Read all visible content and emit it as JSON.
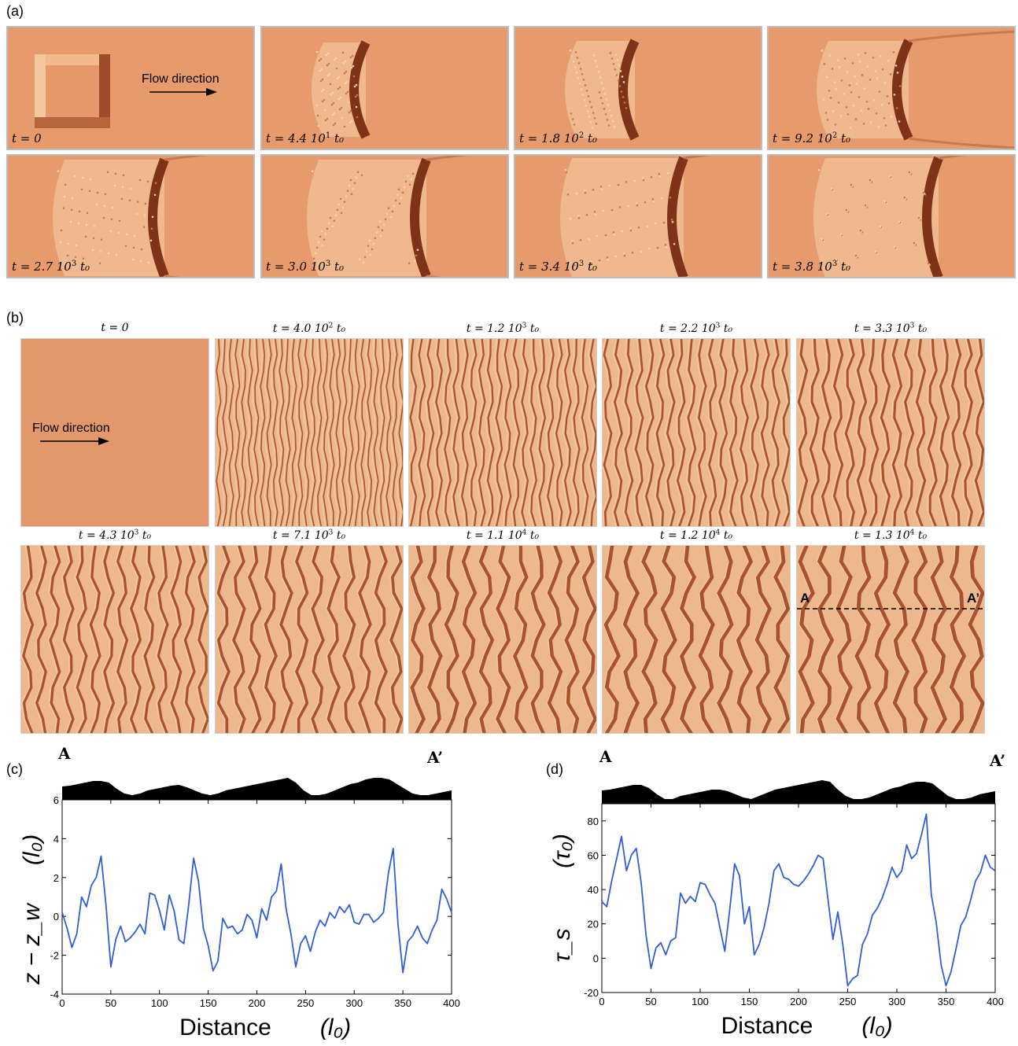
{
  "panel_a": {
    "label": "(a)",
    "flow_label": "Flow direction",
    "tiles": [
      {
        "t": "t = 0",
        "base": "",
        "exp": "",
        "unit": ""
      },
      {
        "t": "t = 4.4 10",
        "exp": "1",
        "unit": " t₀"
      },
      {
        "t": "t = 1.8 10",
        "exp": "2",
        "unit": " t₀"
      },
      {
        "t": "t = 9.2 10",
        "exp": "2",
        "unit": " t₀"
      },
      {
        "t": "t = 2.7 10",
        "exp": "3",
        "unit": " t₀"
      },
      {
        "t": "t = 3.0 10",
        "exp": "3",
        "unit": " t₀"
      },
      {
        "t": "t = 3.4 10",
        "exp": "3",
        "unit": " t₀"
      },
      {
        "t": "t = 3.8 10",
        "exp": "3",
        "unit": " t₀"
      }
    ]
  },
  "panel_b": {
    "label": "(b)",
    "flow_label": "Flow direction",
    "tiles": [
      {
        "t": "t = 0",
        "exp": "",
        "unit": ""
      },
      {
        "t": "t = 4.0 10",
        "exp": "2",
        "unit": " t₀"
      },
      {
        "t": "t = 1.2 10",
        "exp": "3",
        "unit": " t₀"
      },
      {
        "t": "t = 2.2 10",
        "exp": "3",
        "unit": " t₀"
      },
      {
        "t": "t = 3.3 10",
        "exp": "3",
        "unit": " t₀"
      },
      {
        "t": "t = 4.3 10",
        "exp": "3",
        "unit": " t₀"
      },
      {
        "t": "t = 7.1 10",
        "exp": "3",
        "unit": " t₀"
      },
      {
        "t": "t = 1.1 10",
        "exp": "4",
        "unit": " t₀"
      },
      {
        "t": "t = 1.2 10",
        "exp": "4",
        "unit": " t₀"
      },
      {
        "t": "t = 1.3 10",
        "exp": "4",
        "unit": " t₀"
      }
    ],
    "section_start": "A",
    "section_end": "A’"
  },
  "panel_c": {
    "label": "(c)",
    "marker_start": "A",
    "marker_end": "A’"
  },
  "panel_d": {
    "label": "(d)",
    "marker_start": "A",
    "marker_end": "A’"
  },
  "chart_data": [
    {
      "type": "line",
      "panel": "(c)",
      "xlabel": "Distance",
      "xunit": "(l₀)",
      "ylabel": "z − z_w",
      "yunit": "(l₀)",
      "xlim": [
        0,
        400
      ],
      "ylim": [
        -4,
        6
      ],
      "xticks": [
        0,
        50,
        100,
        150,
        200,
        250,
        300,
        350,
        400
      ],
      "yticks": [
        -4,
        -2,
        0,
        2,
        4,
        6
      ],
      "color": "#2f5fd6",
      "x": [
        0,
        5,
        10,
        15,
        20,
        25,
        30,
        35,
        40,
        45,
        50,
        55,
        60,
        65,
        70,
        75,
        80,
        85,
        90,
        95,
        100,
        105,
        110,
        115,
        120,
        125,
        130,
        135,
        140,
        145,
        150,
        155,
        160,
        165,
        170,
        175,
        180,
        185,
        190,
        195,
        200,
        205,
        210,
        215,
        220,
        225,
        230,
        235,
        240,
        245,
        250,
        255,
        260,
        265,
        270,
        275,
        280,
        285,
        290,
        295,
        300,
        305,
        310,
        315,
        320,
        325,
        330,
        335,
        340,
        345,
        350,
        355,
        360,
        365,
        370,
        375,
        380,
        385,
        390,
        395,
        400
      ],
      "y": [
        0.2,
        -0.6,
        -1.6,
        -0.9,
        1.0,
        0.5,
        1.6,
        2.0,
        3.1,
        0.6,
        -2.6,
        -1.2,
        -0.5,
        -1.3,
        -1.1,
        -0.8,
        -0.4,
        -0.9,
        1.2,
        1.1,
        0.3,
        -0.7,
        1.1,
        0.3,
        -1.2,
        -1.4,
        0.6,
        3.0,
        1.8,
        -0.6,
        -1.5,
        -2.8,
        -2.3,
        -0.1,
        -0.6,
        -0.5,
        -0.9,
        -0.7,
        0.1,
        -0.2,
        -1.1,
        0.4,
        -0.2,
        1.0,
        1.3,
        2.7,
        0.4,
        -0.9,
        -2.6,
        -1.4,
        -1.0,
        -1.8,
        -0.8,
        -0.2,
        -0.5,
        0.2,
        -0.1,
        0.5,
        0.2,
        0.6,
        -0.3,
        -0.4,
        0.1,
        0.1,
        -0.3,
        -0.1,
        0.2,
        2.2,
        3.5,
        -0.4,
        -2.9,
        -1.3,
        -1.0,
        -0.5,
        -1.1,
        -1.4,
        -0.7,
        -0.2,
        1.4,
        0.9,
        0.2
      ]
    },
    {
      "type": "line",
      "panel": "(d)",
      "xlabel": "Distance",
      "xunit": "(l₀)",
      "ylabel": "τ_s",
      "yunit": "(τ₀)",
      "xlim": [
        0,
        400
      ],
      "ylim": [
        -20,
        90
      ],
      "xticks": [
        0,
        50,
        100,
        150,
        200,
        250,
        300,
        350,
        400
      ],
      "yticks": [
        -20,
        0,
        20,
        40,
        60,
        80
      ],
      "color": "#2f5fd6",
      "x": [
        0,
        5,
        10,
        15,
        20,
        25,
        30,
        35,
        40,
        45,
        50,
        55,
        60,
        65,
        70,
        75,
        80,
        85,
        90,
        95,
        100,
        105,
        110,
        115,
        120,
        125,
        130,
        135,
        140,
        145,
        150,
        155,
        160,
        165,
        170,
        175,
        180,
        185,
        190,
        195,
        200,
        205,
        210,
        215,
        220,
        225,
        230,
        235,
        240,
        245,
        250,
        255,
        260,
        265,
        270,
        275,
        280,
        285,
        290,
        295,
        300,
        305,
        310,
        315,
        320,
        325,
        330,
        335,
        340,
        345,
        350,
        355,
        360,
        365,
        370,
        375,
        380,
        385,
        390,
        395,
        400
      ],
      "y": [
        33,
        30,
        45,
        58,
        71,
        51,
        60,
        64,
        44,
        13,
        -6,
        6,
        9,
        2,
        10,
        12,
        38,
        32,
        36,
        33,
        44,
        43,
        37,
        32,
        18,
        4,
        28,
        55,
        48,
        20,
        30,
        2,
        8,
        18,
        32,
        51,
        55,
        47,
        46,
        43,
        42,
        45,
        49,
        54,
        60,
        58,
        34,
        11,
        27,
        8,
        -16,
        -12,
        -10,
        8,
        14,
        25,
        29,
        35,
        43,
        53,
        47,
        51,
        66,
        58,
        61,
        72,
        84,
        37,
        21,
        -4,
        -16,
        -8,
        5,
        19,
        24,
        34,
        45,
        50,
        60,
        53,
        51
      ]
    }
  ]
}
